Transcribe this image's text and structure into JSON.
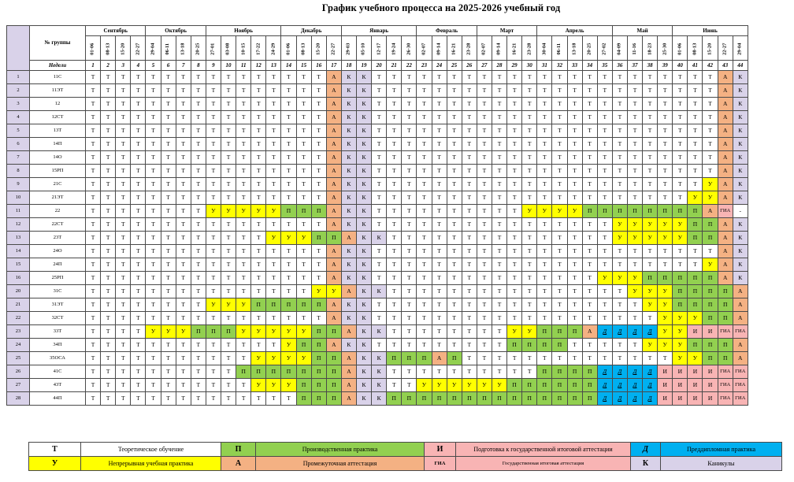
{
  "title": "График учебного процесса   на 2025-2026 учебный год",
  "header": {
    "group_label": "№ группы",
    "weeks_label": "Недели",
    "months": [
      {
        "name": "Сентябрь",
        "span": 4
      },
      {
        "name": "Октябрь",
        "span": 4
      },
      {
        "name": "Ноябрь",
        "span": 5
      },
      {
        "name": "Декабрь",
        "span": 4
      },
      {
        "name": "Январь",
        "span": 5
      },
      {
        "name": "Февраль",
        "span": 4
      },
      {
        "name": "Март",
        "span": 4
      },
      {
        "name": "Апрель",
        "span": 5
      },
      {
        "name": "Май",
        "span": 4
      },
      {
        "name": "Июнь",
        "span": 5
      }
    ],
    "dates": [
      "01-06",
      "08-13",
      "15-20",
      "22-27",
      "29-04",
      "06-11",
      "13-18",
      "20-25",
      "27-01",
      "03-08",
      "10-15",
      "17-22",
      "24-29",
      "01-06",
      "08-13",
      "15-20",
      "22-27",
      "29-03",
      "05-10",
      "12-17",
      "19-24",
      "26-30",
      "02-07",
      "09-14",
      "16-21",
      "23-28",
      "02-07",
      "09-14",
      "16-21",
      "23-28",
      "30-04",
      "06-11",
      "13-18",
      "20-25",
      "27-02",
      "04-09",
      "11-16",
      "18-23",
      "25-30",
      "01-06",
      "08-13",
      "15-20",
      "22-27",
      "29-04"
    ],
    "weeks": [
      "1",
      "2",
      "3",
      "4",
      "5",
      "6",
      "7",
      "8",
      "9",
      "10",
      "11",
      "12",
      "13",
      "14",
      "15",
      "16",
      "17",
      "18",
      "19",
      "20",
      "21",
      "22",
      "23",
      "24",
      "25",
      "26",
      "27",
      "28",
      "29",
      "30",
      "31",
      "32",
      "33",
      "34",
      "35",
      "36",
      "37",
      "38",
      "39",
      "40",
      "41",
      "42",
      "43",
      "44"
    ]
  },
  "rows": [
    {
      "n": "1",
      "group": "11С",
      "cells": "TTTTTTTTTTTTTTTTAKKTTTTTTTTTTTTTTTTTTTTTTTAK"
    },
    {
      "n": "2",
      "group": "11ЭТ",
      "cells": "TTTTTTTTTTTTTTTTAKKTTTTTTTTTTTTTTTTTTTTTTTAK"
    },
    {
      "n": "3",
      "group": "12",
      "cells": "TTTTTTTTTTTTTTTTAKKTTTTTTTTTTTTTTTTTTTTTTTAK"
    },
    {
      "n": "4",
      "group": "12СТ",
      "cells": "TTTTTTTTTTTTTTTTAKKTTTTTTTTTTTTTTTTTTTTTTTAK"
    },
    {
      "n": "5",
      "group": "13Т",
      "cells": "TTTTTTTTTTTTTTTTAKKTTTTTTTTTTTTTTTTTTTTTTTAK"
    },
    {
      "n": "6",
      "group": "14П",
      "cells": "TTTTTTTTTTTTTTTTAKKTTTTTTTTTTTTTTTTTTTTTTTAK"
    },
    {
      "n": "7",
      "group": "14О",
      "cells": "TTTTTTTTTTTTTTTTAKKTTTTTTTTTTTTTTTTTTTTTTTAK"
    },
    {
      "n": "8",
      "group": "15РП",
      "cells": "TTTTTTTTTTTTTTTTAKKTTTTTTTTTTTTTTTTTTTTTTTAK"
    },
    {
      "n": "9",
      "group": "21С",
      "cells": "TTTTTTTTTTTTTTTTAKKTTTTTTTTTTTTTTTTTTTTTTUAK"
    },
    {
      "n": "10",
      "group": "21ЭТ",
      "cells": "TTTTTTTTTTTTTTTTAKKTTTTTTTTTTTTTTTTTTTTTUUAK"
    },
    {
      "n": "11",
      "group": "22",
      "cells": "TTTTTTTTUUUUUPPPAKKTTTTTTTTTTUUUUPPPPPPPPAGX"
    },
    {
      "n": "12",
      "group": "22СТ",
      "cells": "TTTTTTTTTTTTTTTTAKKTTTTTTTTTTTTTTTTUUUUUPPAK"
    },
    {
      "n": "13",
      "group": "23Т",
      "cells": "TTTTTTTTTTTTUUUPPAKKTTTTTTTTTTTTTTTUUUUUPPAK"
    },
    {
      "n": "14",
      "group": "24О",
      "cells": "TTTTTTTTTTTTTTTTAKKTTTTTTTTTTTTTTTTTTTTTTTAK"
    },
    {
      "n": "15",
      "group": "24П",
      "cells": "TTTTTTTTTTTTTTTTAKKTTTTTTTTTTTTTTTTTTTTTTUAK"
    },
    {
      "n": "16",
      "group": "25РП",
      "cells": "TTTTTTTTTTTTTTTTAKKTTTTTTTTTTTTTTTUUUPPPPPAK"
    },
    {
      "n": "20",
      "group": "31С",
      "cells": "TTTTTTTTTTTTTTTUUAKKTTTTTTTTTTTTTTTTUUUPPPPA"
    },
    {
      "n": "21",
      "group": "31ЭТ",
      "cells": "TTTTTTTTUUUPPPPPAKKTTTTTTTTTTTTTTTTTTUUPPPPA"
    },
    {
      "n": "22",
      "group": "32СТ",
      "cells": "TTTTTTTTTTTTTTTTAKKTTTTTTTTTTTTTTTTTTTUUUPPA"
    },
    {
      "n": "23",
      "group": "33Т",
      "cells": "TTTTUUUPPPUUUUUPPAKKTTTTTTTTUUPPPADDDDUUIIGG"
    },
    {
      "n": "24",
      "group": "34П",
      "cells": "TTTTTTTTTTTTTUPPAKKTTTTTTTTTPPPPTTTTTUUUPPPA"
    },
    {
      "n": "25",
      "group": "35ОСА",
      "cells": "TTTTTTTTTTTUUUUPPAKKPPPAPTTTTTTTTTTTTTTUUPPA"
    },
    {
      "n": "26",
      "group": "41С",
      "cells": "TTTTTTTTTTPPPPPPPAKKTTTTTTTTTTPPPPDDDDIIIIGG"
    },
    {
      "n": "27",
      "group": "43Т",
      "cells": "TTTTTTTTTTTUUUPPPAKKTTUUUUUUPPPPPPDDDDIIIIGG"
    },
    {
      "n": "28",
      "group": "44П",
      "cells": "TTTTTTTTTTTTTTPPPAKKPPPPPPPPPPPPPPDDDDIIIIGG"
    }
  ],
  "codes": {
    "T": "Т",
    "U": "У",
    "P": "П",
    "A": "А",
    "K": "К",
    "I": "И",
    "G": "ГИА",
    "D": "Д",
    "X": "-"
  },
  "colors": {
    "T": "#ffffff",
    "U": "#ffff00",
    "P": "#92d050",
    "A": "#f4b183",
    "K": "#d9d2e9",
    "I": "#f8b4b4",
    "G": "#f8b4b4",
    "D": "#00b0f0"
  },
  "legend": [
    [
      {
        "sym": "Т",
        "label": "Теоретическое обучение",
        "code": "T"
      },
      {
        "sym": "П",
        "label": "Производственная практика",
        "code": "P"
      },
      {
        "sym": "И",
        "label": "Подготовка к государственной итоговой аттестации",
        "code": "I"
      },
      {
        "sym": "Д",
        "label": "Преддипломная практика",
        "code": "D"
      }
    ],
    [
      {
        "sym": "У",
        "label": "Непрерывная учебная практика",
        "code": "U"
      },
      {
        "sym": "А",
        "label": "Промежуточная аттестация",
        "code": "A"
      },
      {
        "sym": "ГИА",
        "label": "Государственная итоговая аттестация",
        "code": "G"
      },
      {
        "sym": "К",
        "label": "Каникулы",
        "code": "K"
      }
    ]
  ]
}
